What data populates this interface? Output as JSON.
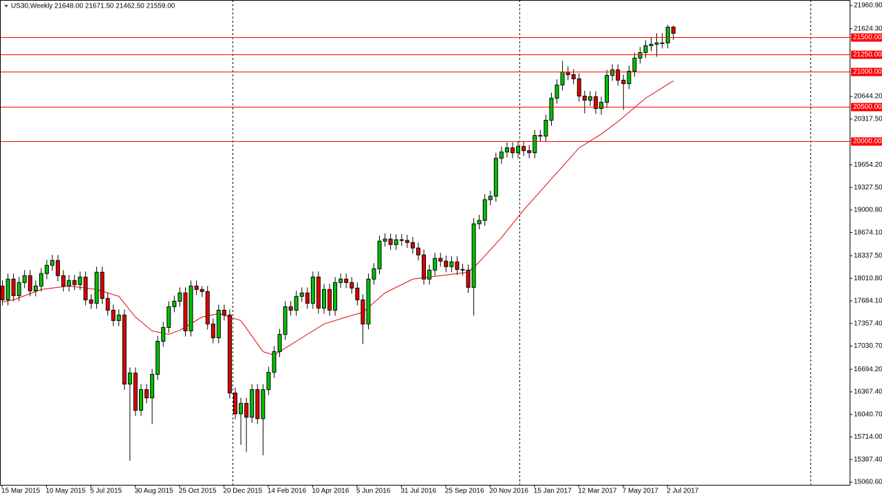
{
  "chart_data": {
    "type": "candlestick",
    "title": "US30,Weekly  21648.00 21671.50 21462.50 21559.00",
    "categories": [
      "15 Mar 2015",
      null,
      null,
      null,
      null,
      null,
      null,
      null,
      "10 May 2015",
      null,
      null,
      null,
      null,
      null,
      null,
      null,
      "5 Jul 2015",
      null,
      null,
      null,
      null,
      null,
      null,
      null,
      "30 Aug 2015",
      null,
      null,
      null,
      null,
      null,
      null,
      null,
      "25 Oct 2015",
      null,
      null,
      null,
      null,
      null,
      null,
      null,
      "20 Dec 2015",
      null,
      null,
      null,
      null,
      null,
      null,
      null,
      "14 Feb 2016",
      null,
      null,
      null,
      null,
      null,
      null,
      null,
      "10 Apr 2016",
      null,
      null,
      null,
      null,
      null,
      null,
      null,
      "5 Jun 2016",
      null,
      null,
      null,
      null,
      null,
      null,
      null,
      "31 Jul 2016",
      null,
      null,
      null,
      null,
      null,
      null,
      null,
      "25 Sep 2016",
      null,
      null,
      null,
      null,
      null,
      null,
      null,
      "20 Nov 2016",
      null,
      null,
      null,
      null,
      null,
      null,
      null,
      "15 Jan 2017",
      null,
      null,
      null,
      null,
      null,
      null,
      null,
      "12 Mar 2017",
      null,
      null,
      null,
      null,
      null,
      null,
      null,
      "7 May 2017",
      null,
      null,
      null,
      null,
      null,
      null,
      null,
      "2 Jul 2017",
      null
    ],
    "open": [
      17900,
      17700,
      18000,
      17760,
      17950,
      18050,
      17830,
      17900,
      18080,
      18200,
      18270,
      18050,
      17900,
      17980,
      17920,
      18030,
      17700,
      17650,
      18100,
      17720,
      17550,
      17400,
      17480,
      16480,
      16640,
      16100,
      16400,
      16280,
      16620,
      17100,
      17300,
      17600,
      17680,
      17800,
      17250,
      17900,
      17850,
      17820,
      17350,
      17150,
      17550,
      17480,
      16350,
      16050,
      16200,
      16000,
      16400,
      15980,
      16400,
      16650,
      16950,
      17200,
      17600,
      17550,
      17750,
      17800,
      17650,
      18030,
      17580,
      17850,
      17550,
      17950,
      18000,
      17950,
      17870,
      17700,
      17350,
      18000,
      18150,
      18550,
      18580,
      18500,
      18570,
      18560,
      18530,
      18450,
      18350,
      18000,
      18130,
      18300,
      18260,
      18180,
      18250,
      18140,
      18130,
      17880,
      18800,
      18850,
      19150,
      19200,
      19750,
      19840,
      19900,
      19830,
      19920,
      19860,
      19830,
      20080,
      20070,
      20300,
      20620,
      20810,
      21000,
      20960,
      20900,
      20650,
      20590,
      20640,
      20470,
      20560,
      20950,
      21030,
      20880,
      20830,
      21010,
      21200,
      21280,
      21380,
      21400,
      21420,
      21420,
      21648
    ],
    "high": [
      17980,
      18080,
      18080,
      18030,
      18130,
      18130,
      17980,
      18160,
      18280,
      18350,
      18350,
      18130,
      18060,
      18060,
      18110,
      18110,
      17780,
      18180,
      18180,
      17800,
      17630,
      17560,
      17560,
      16720,
      16720,
      16480,
      16480,
      16700,
      17180,
      17380,
      17680,
      17760,
      17880,
      17880,
      17980,
      17980,
      17900,
      17900,
      17430,
      17630,
      17630,
      17560,
      16430,
      16280,
      16280,
      16480,
      16480,
      16480,
      16730,
      17030,
      17280,
      17680,
      17680,
      17830,
      17880,
      17880,
      18110,
      18110,
      17930,
      17930,
      18030,
      18080,
      18080,
      18030,
      17950,
      17780,
      18080,
      18230,
      18630,
      18660,
      18660,
      18650,
      18650,
      18640,
      18610,
      18530,
      18430,
      18210,
      18380,
      18380,
      18340,
      18330,
      18330,
      18220,
      18210,
      18880,
      18930,
      19230,
      19280,
      19830,
      19920,
      19980,
      19980,
      20000,
      20000,
      19940,
      20160,
      20160,
      20380,
      20700,
      20890,
      21160,
      21080,
      21040,
      20980,
      20730,
      20720,
      20720,
      20640,
      21030,
      21110,
      21110,
      20960,
      21090,
      21280,
      21360,
      21460,
      21500,
      21560,
      21560,
      21680,
      21671.5
    ],
    "low": [
      17620,
      17620,
      17680,
      17680,
      17870,
      17750,
      17750,
      17820,
      18000,
      18120,
      17970,
      17820,
      17820,
      17840,
      17840,
      17620,
      17570,
      17570,
      17640,
      17470,
      17320,
      17320,
      16400,
      15370,
      16020,
      16020,
      16200,
      15900,
      16540,
      17020,
      17220,
      17520,
      17600,
      17170,
      17170,
      17770,
      17740,
      17270,
      17070,
      17070,
      17400,
      16270,
      15970,
      15600,
      15500,
      15920,
      15900,
      15450,
      16320,
      16570,
      16870,
      17120,
      17470,
      17470,
      17670,
      17570,
      17570,
      17500,
      17500,
      17470,
      17470,
      17870,
      17870,
      17790,
      17620,
      17060,
      17270,
      17920,
      18070,
      18470,
      18420,
      18420,
      18480,
      18450,
      18370,
      18270,
      17920,
      17920,
      18050,
      18180,
      18100,
      18100,
      18060,
      18050,
      17800,
      17470,
      18720,
      18770,
      19070,
      19120,
      19670,
      19760,
      19750,
      19750,
      19780,
      19750,
      19750,
      19990,
      19990,
      20220,
      20540,
      20730,
      20880,
      20820,
      20570,
      20400,
      20510,
      20390,
      20380,
      20480,
      20870,
      20800,
      20450,
      20750,
      20930,
      21120,
      21200,
      21300,
      21220,
      21340,
      21340,
      21462.5
    ],
    "close": [
      17700,
      18000,
      17760,
      17950,
      18050,
      17830,
      17900,
      18080,
      18200,
      18270,
      18050,
      17900,
      17980,
      17920,
      18030,
      17700,
      17650,
      18100,
      17720,
      17550,
      17400,
      17480,
      16480,
      16640,
      16100,
      16400,
      16280,
      16620,
      17100,
      17300,
      17600,
      17680,
      17800,
      17250,
      17900,
      17850,
      17820,
      17350,
      17150,
      17550,
      17480,
      16350,
      16050,
      16200,
      16000,
      16400,
      15980,
      16400,
      16650,
      16950,
      17200,
      17600,
      17550,
      17750,
      17800,
      17650,
      18030,
      17580,
      17850,
      17550,
      17950,
      18000,
      17950,
      17870,
      17700,
      17350,
      18000,
      18150,
      18550,
      18580,
      18500,
      18570,
      18560,
      18530,
      18450,
      18350,
      18000,
      18130,
      18300,
      18260,
      18180,
      18250,
      18140,
      18130,
      17880,
      18800,
      18850,
      19150,
      19200,
      19750,
      19840,
      19900,
      19830,
      19920,
      19860,
      19830,
      20080,
      20070,
      20300,
      20620,
      20810,
      21000,
      20960,
      20900,
      20650,
      20590,
      20640,
      20470,
      20560,
      20950,
      21030,
      20880,
      20830,
      21010,
      21200,
      21280,
      21380,
      21400,
      21420,
      21420,
      21648,
      21559
    ],
    "up_color": "#00c000",
    "down_color": "#e00000",
    "ma": {
      "color": "#e00000",
      "x": [
        0,
        2,
        7,
        12,
        17,
        21,
        24,
        27,
        30,
        32,
        36,
        39,
        43,
        47,
        49,
        52,
        54,
        58,
        62,
        65,
        69,
        74,
        79,
        84,
        86,
        90,
        94,
        99,
        104,
        108,
        111,
        116,
        121
      ],
      "values": [
        17670,
        17700,
        17850,
        17900,
        17850,
        17750,
        17450,
        17250,
        17200,
        17260,
        17450,
        17500,
        17400,
        16950,
        16900,
        17050,
        17150,
        17350,
        17450,
        17520,
        17800,
        18000,
        18050,
        18100,
        18250,
        18600,
        19000,
        19450,
        19900,
        20100,
        20280,
        20620,
        20870
      ]
    },
    "ylim": [
      15021,
      22041
    ],
    "yticks": [
      {
        "value": 21960.9,
        "label": "21960.90"
      },
      {
        "value": 21624.3,
        "label": "21624.30"
      },
      {
        "value": 20644.2,
        "label": "20644.20"
      },
      {
        "value": 20317.5,
        "label": "20317.50"
      },
      {
        "value": 19654.2,
        "label": "19654.20"
      },
      {
        "value": 19327.5,
        "label": "19327.50"
      },
      {
        "value": 19000.8,
        "label": "19000.80"
      },
      {
        "value": 18674.1,
        "label": "18674.10"
      },
      {
        "value": 18337.5,
        "label": "18337.50"
      },
      {
        "value": 18010.8,
        "label": "18010.80"
      },
      {
        "value": 17684.1,
        "label": "17684.10"
      },
      {
        "value": 17357.4,
        "label": "17357.40"
      },
      {
        "value": 17030.7,
        "label": "17030.70"
      },
      {
        "value": 16694.2,
        "label": "16694.20"
      },
      {
        "value": 16367.4,
        "label": "16367.40"
      },
      {
        "value": 16040.7,
        "label": "16040.70"
      },
      {
        "value": 15714,
        "label": "15714.00"
      },
      {
        "value": 15387.4,
        "label": "15387.40"
      },
      {
        "value": 15060.6,
        "label": "15060.60"
      }
    ],
    "levels": [
      {
        "value": 21500,
        "label": "21500.00"
      },
      {
        "value": 21250,
        "label": "21250.00"
      },
      {
        "value": 21000,
        "label": "21000.00"
      },
      {
        "value": 20500,
        "label": "20500.00"
      },
      {
        "value": 20000,
        "label": "20000.00"
      }
    ],
    "level_color": "#ff0000"
  }
}
